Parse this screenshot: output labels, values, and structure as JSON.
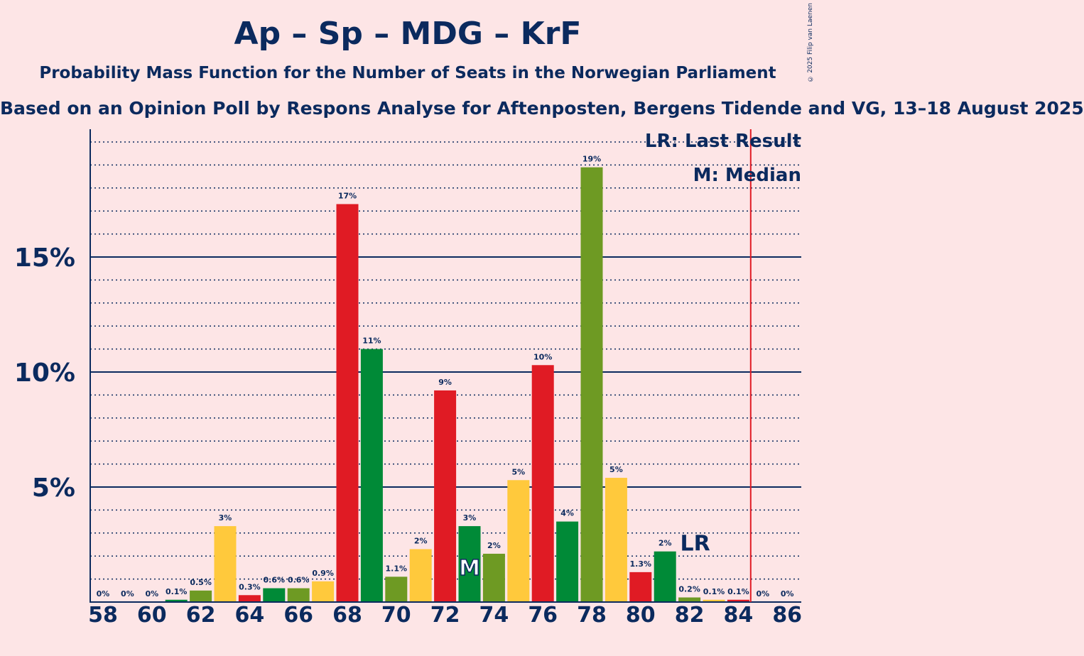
{
  "title": "Ap – Sp – MDG – KrF",
  "subtitle": "Probability Mass Function for the Number of Seats in the Norwegian Parliament",
  "subtitle2": "Based on an Opinion Poll by Respons Analyse for Aftenposten, Bergens Tidende and VG, 13–18 August 2025",
  "copyright": "© 2025 Filip van Laenen",
  "legend": {
    "lr": "LR: Last Result",
    "median": "M: Median"
  },
  "colors": {
    "background": "#FDE5E6",
    "navy": "#0B2A5E",
    "red": "#E01B24",
    "green": "#008A37",
    "olive": "#6E9A23",
    "yellow": "#FFC93C",
    "majority_line": "#E01B24"
  },
  "chart_data": {
    "type": "bar",
    "x": [
      58,
      59,
      60,
      61,
      62,
      63,
      64,
      65,
      66,
      67,
      68,
      69,
      70,
      71,
      72,
      73,
      74,
      75,
      76,
      77,
      78,
      79,
      80,
      81,
      82,
      83,
      84,
      85,
      86
    ],
    "values": [
      0,
      0,
      0,
      0.1,
      0.5,
      3.3,
      0.3,
      0.6,
      0.6,
      0.9,
      17.3,
      11.0,
      1.1,
      2.3,
      9.2,
      3.3,
      2.1,
      5.3,
      10.3,
      3.5,
      18.9,
      5.4,
      1.3,
      2.2,
      0.2,
      0.1,
      0.1,
      0,
      0
    ],
    "labels": [
      "0%",
      "0%",
      "0%",
      "0.1%",
      "0.5%",
      "3%",
      "0.3%",
      "0.6%",
      "0.6%",
      "0.9%",
      "17%",
      "11%",
      "1.1%",
      "2%",
      "9%",
      "3%",
      "2%",
      "5%",
      "10%",
      "4%",
      "19%",
      "5%",
      "1.3%",
      "2%",
      "0.2%",
      "0.1%",
      "0.1%",
      "0%",
      "0%"
    ],
    "bar_colors": [
      "yellow",
      "yellow",
      "yellow",
      "green",
      "olive",
      "yellow",
      "red",
      "green",
      "olive",
      "yellow",
      "red",
      "green",
      "olive",
      "yellow",
      "red",
      "green",
      "olive",
      "yellow",
      "red",
      "green",
      "olive",
      "yellow",
      "red",
      "green",
      "olive",
      "yellow",
      "red",
      "green",
      "olive"
    ],
    "x_ticks": [
      58,
      60,
      62,
      64,
      66,
      68,
      70,
      72,
      74,
      76,
      78,
      80,
      82,
      84,
      86
    ],
    "y_ticks": [
      5,
      10,
      15
    ],
    "y_tick_labels": [
      "5%",
      "10%",
      "15%"
    ],
    "ylim": [
      0,
      20.5
    ],
    "median_seat": 73,
    "median_label": "M",
    "last_result_seat": 82,
    "last_result_label": "LR",
    "majority_line_x": 85
  }
}
